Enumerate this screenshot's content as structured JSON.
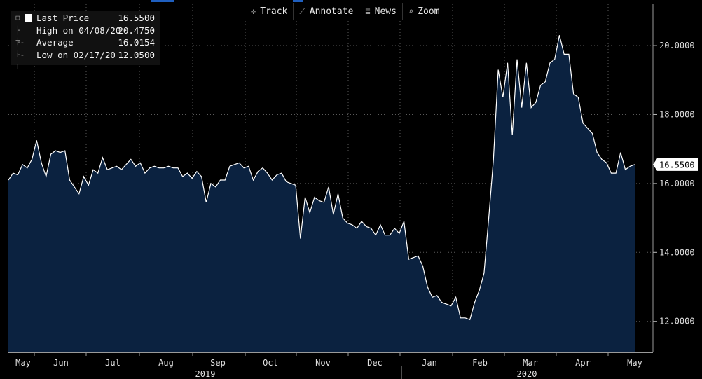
{
  "toolbar": {
    "items": [
      {
        "icon": "✛",
        "icon_name": "track-icon",
        "label": "Track"
      },
      {
        "icon": "⟋",
        "icon_name": "annotate-icon",
        "label": "Annotate"
      },
      {
        "icon": "≣",
        "icon_name": "news-icon",
        "label": "News"
      },
      {
        "icon": "⌕",
        "icon_name": "zoom-icon",
        "label": "Zoom"
      }
    ]
  },
  "legend": {
    "last_price": {
      "label": "Last Price",
      "value": "16.5500"
    },
    "high": {
      "label": "High on 04/08/20",
      "value": "20.4750"
    },
    "average": {
      "label": "Average",
      "value": "16.0154"
    },
    "low": {
      "label": "Low on 02/17/20",
      "value": "12.0500"
    }
  },
  "colors": {
    "background": "#000000",
    "area_fill": "#0b2240",
    "line": "#ffffff",
    "grid": "#5a5a5a",
    "accent": "#1f5fbf"
  },
  "chart_data": {
    "type": "area",
    "last_value_label": "16.5500",
    "ylim": [
      11.1,
      21.2
    ],
    "y_ticks": [
      12,
      14,
      16,
      18,
      20
    ],
    "y_tick_labels": [
      "12.0000",
      "14.0000",
      "16.0000",
      "18.0000",
      "20.0000"
    ],
    "x_ticks": [
      "May",
      "Jun",
      "Jul",
      "Aug",
      "Sep",
      "Oct",
      "Nov",
      "Dec",
      "Jan",
      "Feb",
      "Mar",
      "Apr",
      "May"
    ],
    "year_labels": [
      "2019",
      "2020"
    ],
    "grid": true,
    "series": [
      {
        "values": [
          16.1,
          16.3,
          16.25,
          16.55,
          16.45,
          16.7,
          17.25,
          16.6,
          16.2,
          16.85,
          16.95,
          16.9,
          16.95,
          16.1,
          15.9,
          15.7,
          16.2,
          15.95,
          16.4,
          16.3,
          16.75,
          16.4,
          16.45,
          16.5,
          16.4,
          16.55,
          16.7,
          16.5,
          16.6,
          16.3,
          16.45,
          16.5,
          16.45,
          16.45,
          16.5,
          16.45,
          16.45,
          16.2,
          16.3,
          16.15,
          16.35,
          16.2,
          15.45,
          16.0,
          15.9,
          16.1,
          16.1,
          16.5,
          16.55,
          16.6,
          16.45,
          16.5,
          16.1,
          16.35,
          16.45,
          16.3,
          16.1,
          16.25,
          16.3,
          16.05,
          16.0,
          15.95,
          14.4,
          15.6,
          15.15,
          15.6,
          15.5,
          15.45,
          15.9,
          15.1,
          15.7,
          15.0,
          14.85,
          14.8,
          14.7,
          14.9,
          14.75,
          14.7,
          14.5,
          14.8,
          14.5,
          14.5,
          14.7,
          14.55,
          14.9,
          13.8,
          13.85,
          13.9,
          13.6,
          13.0,
          12.7,
          12.75,
          12.55,
          12.5,
          12.45,
          12.7,
          12.1,
          12.1,
          12.05,
          12.55,
          12.9,
          13.4,
          15.0,
          16.7,
          19.3,
          18.5,
          19.5,
          17.4,
          19.6,
          18.2,
          19.5,
          18.2,
          18.35,
          18.85,
          18.95,
          19.5,
          19.6,
          20.3,
          19.75,
          19.75,
          18.6,
          18.5,
          17.75,
          17.6,
          17.45,
          16.9,
          16.7,
          16.6,
          16.3,
          16.3,
          16.9,
          16.4,
          16.5,
          16.55
        ]
      }
    ]
  }
}
